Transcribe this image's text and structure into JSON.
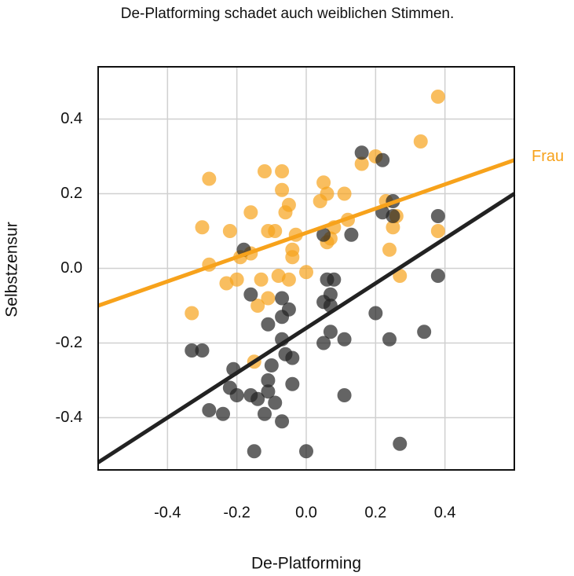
{
  "chart_data": {
    "type": "scatter",
    "title": "De-Platforming schadet auch weiblichen Stimmen.",
    "x_label": "De-Platforming",
    "y_label": "Selbstzensur",
    "xlim": [
      -0.6,
      0.6
    ],
    "ylim": [
      -0.54,
      0.54
    ],
    "xticks": [
      -0.4,
      -0.2,
      {
        "value": 0,
        "label": "0.0"
      },
      0.2,
      0.4
    ],
    "yticks": [
      -0.4,
      -0.2,
      {
        "value": 0,
        "label": "0.0"
      },
      0.2,
      0.4
    ],
    "grid": true,
    "series": [
      {
        "name": "Frau",
        "color": "#f7a21b",
        "x": [
          0.38,
          0.33,
          0.16,
          0.2,
          -0.28,
          -0.12,
          -0.07,
          -0.07,
          -0.05,
          0.05,
          0.06,
          0.11,
          0.04,
          -0.16,
          -0.3,
          -0.22,
          -0.11,
          -0.09,
          -0.06,
          -0.03,
          0.12,
          0.08,
          0.06,
          0.07,
          0.25,
          0.26,
          0.24,
          0.23,
          0.38,
          -0.16,
          -0.19,
          -0.04,
          -0.28,
          -0.13,
          -0.08,
          -0.05,
          0,
          0.27,
          -0.23,
          -0.2,
          -0.11,
          -0.14,
          -0.33,
          -0.15,
          -0.04
        ],
        "values": [
          0.46,
          0.34,
          0.28,
          0.3,
          0.24,
          0.26,
          0.26,
          0.21,
          0.17,
          0.23,
          0.2,
          0.2,
          0.18,
          0.15,
          0.11,
          0.1,
          0.1,
          0.1,
          0.15,
          0.09,
          0.13,
          0.11,
          0.07,
          0.08,
          0.11,
          0.14,
          0.05,
          0.18,
          0.1,
          0.04,
          0.03,
          0.03,
          0.01,
          -0.03,
          -0.02,
          -0.03,
          -0.01,
          -0.02,
          -0.04,
          -0.03,
          -0.08,
          -0.1,
          -0.12,
          -0.25,
          0.05
        ],
        "fit_x": [
          -0.6,
          0.6
        ],
        "fit_y": [
          -0.1,
          0.29
        ]
      },
      {
        "color": "#222222",
        "x": [
          0.16,
          0.22,
          0.25,
          0.22,
          0.25,
          0.38,
          0.13,
          0.05,
          -0.18,
          0.38,
          0.08,
          0.06,
          0.07,
          0.05,
          0.07,
          -0.16,
          -0.07,
          -0.05,
          -0.07,
          0.2,
          -0.11,
          0.07,
          0.11,
          0.05,
          0.24,
          0.34,
          -0.07,
          -0.33,
          -0.3,
          -0.06,
          -0.04,
          -0.1,
          -0.21,
          -0.11,
          -0.22,
          -0.04,
          -0.2,
          -0.16,
          -0.11,
          -0.14,
          -0.09,
          0.11,
          -0.28,
          -0.24,
          -0.12,
          -0.07,
          0.27,
          -0.15,
          0
        ],
        "values": [
          0.31,
          0.29,
          0.18,
          0.15,
          0.14,
          0.14,
          0.09,
          0.09,
          0.05,
          -0.02,
          -0.03,
          -0.03,
          -0.07,
          -0.09,
          -0.1,
          -0.07,
          -0.08,
          -0.11,
          -0.13,
          -0.12,
          -0.15,
          -0.17,
          -0.19,
          -0.2,
          -0.19,
          -0.17,
          -0.19,
          -0.22,
          -0.22,
          -0.23,
          -0.24,
          -0.26,
          -0.27,
          -0.3,
          -0.32,
          -0.31,
          -0.34,
          -0.34,
          -0.33,
          -0.35,
          -0.36,
          -0.34,
          -0.38,
          -0.39,
          -0.39,
          -0.41,
          -0.47,
          -0.49,
          -0.49
        ],
        "fit_x": [
          -0.6,
          0.6
        ],
        "fit_y": [
          -0.52,
          0.2
        ]
      }
    ]
  }
}
